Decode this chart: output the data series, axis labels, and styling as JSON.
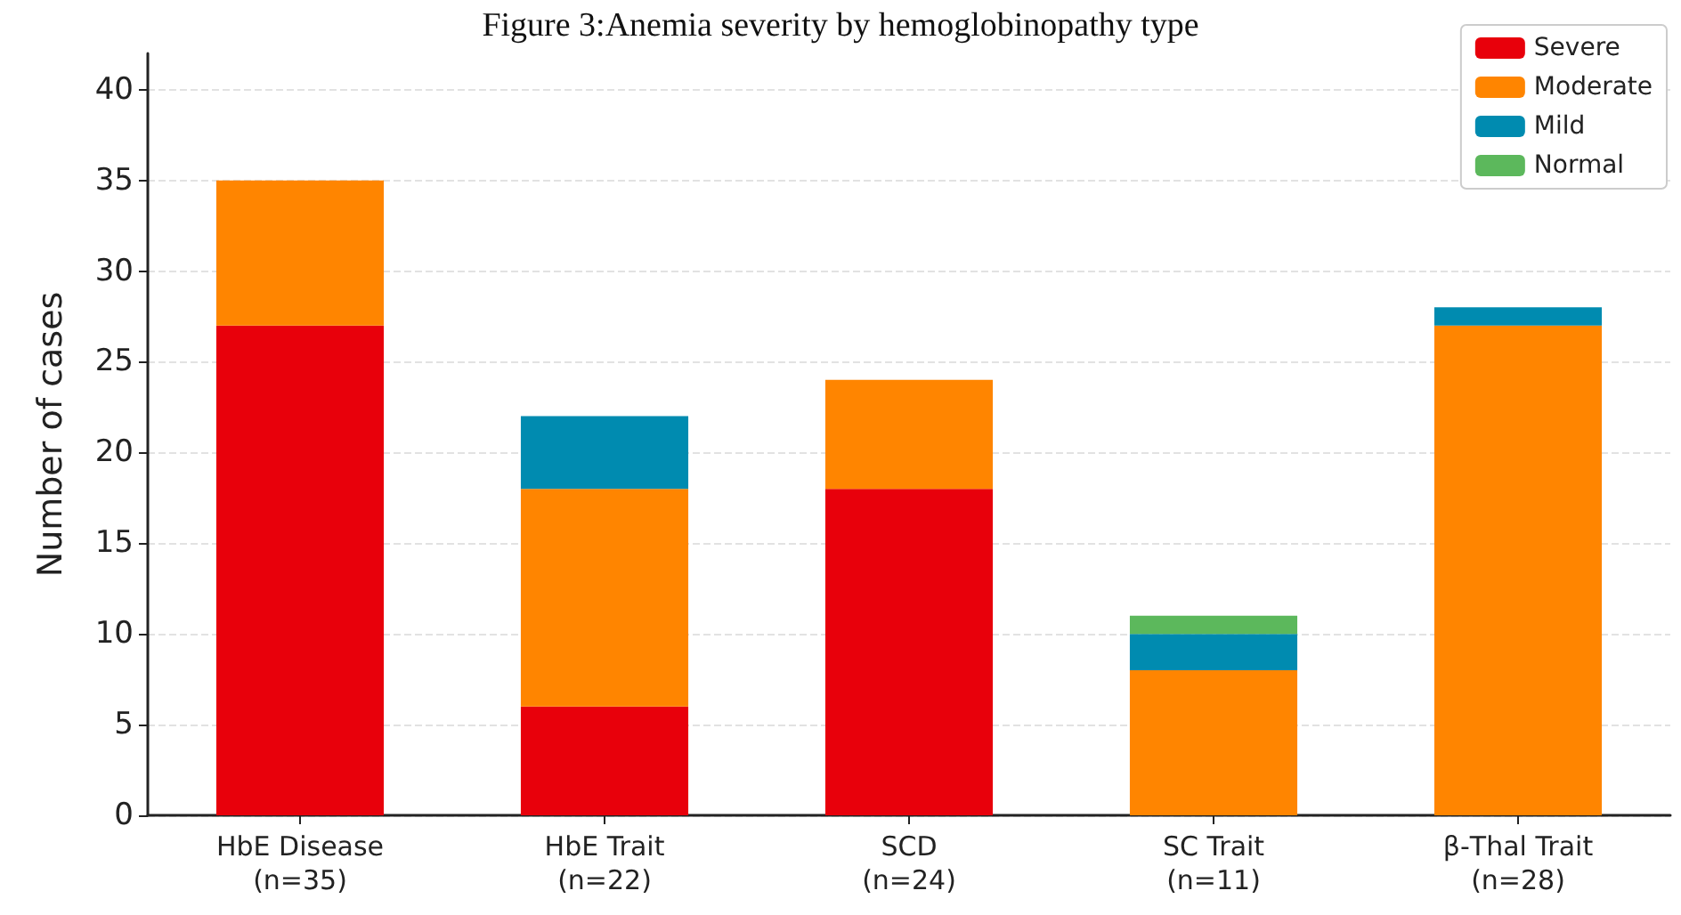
{
  "chart_data": {
    "type": "bar",
    "title": "Figure 3:Anemia severity by hemoglobinopathy type",
    "ylabel": "Number of cases",
    "categories": [
      "HbE Disease\n(n=35)",
      "HbE Trait\n(n=22)",
      "SCD\n(n=24)",
      "SC Trait\n(n=11)",
      "β-Thal Trait\n(n=28)"
    ],
    "series": [
      {
        "name": "Severe",
        "color": "#e8000b",
        "values": [
          27,
          6,
          18,
          0,
          0
        ]
      },
      {
        "name": "Moderate",
        "color": "#ff8500",
        "values": [
          8,
          12,
          6,
          8,
          27
        ]
      },
      {
        "name": "Mild",
        "color": "#008bb0",
        "values": [
          0,
          4,
          0,
          2,
          1
        ]
      },
      {
        "name": "Normal",
        "color": "#5cb85c",
        "values": [
          0,
          0,
          0,
          1,
          0
        ]
      }
    ],
    "stacked": true,
    "ylim": [
      0,
      42
    ],
    "yticks": [
      0,
      5,
      10,
      15,
      20,
      25,
      30,
      35,
      40
    ],
    "grid": "y",
    "legend": "top right"
  }
}
